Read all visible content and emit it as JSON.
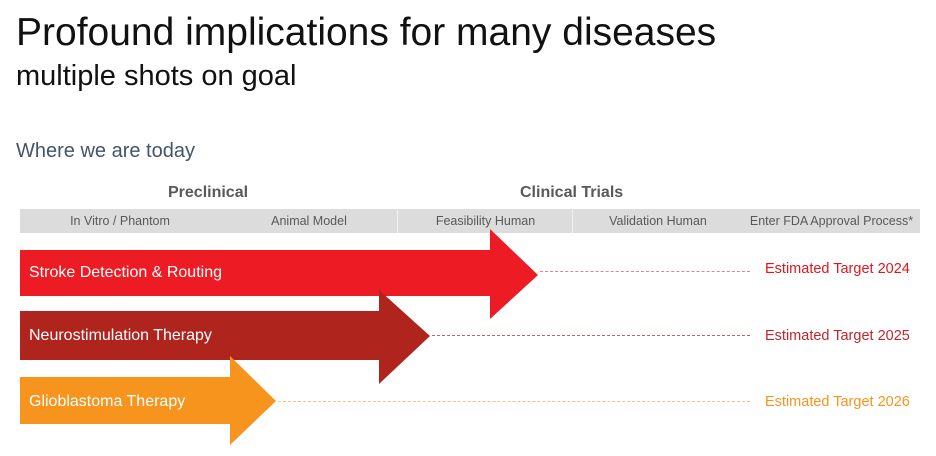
{
  "header": {
    "title": "Profound implications for many diseases",
    "subtitle": "multiple shots on goal",
    "section": "Where we are today"
  },
  "groups": {
    "preclinical": "Preclinical",
    "clinical": "Clinical Trials"
  },
  "phases": [
    "In Vitro / Phantom",
    "Animal Model",
    "Feasibility Human",
    "Validation Human",
    "Enter FDA Approval Process*"
  ],
  "programs": [
    {
      "label": "Stroke Detection & Routing",
      "target": "Estimated Target 2024",
      "color": "#ed1c24",
      "stage": "Feasibility Human"
    },
    {
      "label": "Neurostimulation Therapy",
      "target": "Estimated Target 2025",
      "color": "#b0241e",
      "stage": "Feasibility Human"
    },
    {
      "label": "Glioblastoma Therapy",
      "target": "Estimated Target 2026",
      "color": "#f7941d",
      "stage": "Animal Model"
    }
  ],
  "colors": {
    "title": "#111111",
    "section": "#44546a",
    "phase_bar": "#dcdcdc",
    "phase_text": "#595959",
    "red": "#ed1c24",
    "dark_red": "#b0241e",
    "orange": "#f7941d"
  }
}
